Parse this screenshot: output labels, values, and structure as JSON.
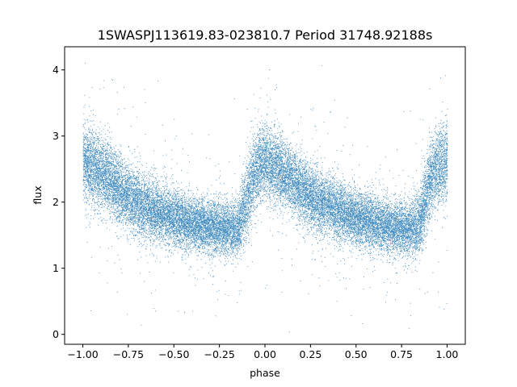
{
  "chart_data": {
    "type": "scatter",
    "title": "1SWASPJ113619.83-023810.7 Period 31748.92188s",
    "xlabel": "phase",
    "ylabel": "flux",
    "xlim": [
      -1.1,
      1.1
    ],
    "ylim": [
      -0.15,
      4.35
    ],
    "xticks": [
      -1.0,
      -0.75,
      -0.5,
      -0.25,
      0.0,
      0.25,
      0.5,
      0.75,
      1.0
    ],
    "xtick_labels": [
      "−1.00",
      "−0.75",
      "−0.50",
      "−0.25",
      "0.00",
      "0.25",
      "0.50",
      "0.75",
      "1.00"
    ],
    "yticks": [
      0,
      1,
      2,
      3,
      4
    ],
    "ytick_labels": [
      "0",
      "1",
      "2",
      "3",
      "4"
    ],
    "marker_color": "#1f77b4",
    "grid": false,
    "legend": null,
    "series": [
      {
        "phase": [
          -1.0,
          -0.9,
          -0.8,
          -0.7,
          -0.6,
          -0.5,
          -0.4,
          -0.3,
          -0.2,
          -0.15,
          -0.1,
          -0.05,
          0.0,
          0.05,
          0.1,
          0.2,
          0.3,
          0.4,
          0.5,
          0.6,
          0.7,
          0.8,
          0.85,
          0.9,
          0.95,
          1.0
        ],
        "flux_center": [
          2.6,
          2.45,
          2.2,
          1.98,
          1.85,
          1.75,
          1.68,
          1.62,
          1.6,
          1.58,
          2.05,
          2.5,
          2.6,
          2.55,
          2.45,
          2.2,
          2.0,
          1.87,
          1.77,
          1.68,
          1.62,
          1.6,
          1.7,
          2.3,
          2.55,
          2.6
        ],
        "flux_spread": [
          0.28,
          0.27,
          0.25,
          0.23,
          0.22,
          0.21,
          0.2,
          0.2,
          0.2,
          0.22,
          0.3,
          0.28,
          0.27,
          0.26,
          0.25,
          0.24,
          0.23,
          0.22,
          0.21,
          0.2,
          0.2,
          0.2,
          0.24,
          0.3,
          0.28,
          0.28
        ],
        "n_points": 26000,
        "outlier_fraction": 0.035
      }
    ]
  }
}
